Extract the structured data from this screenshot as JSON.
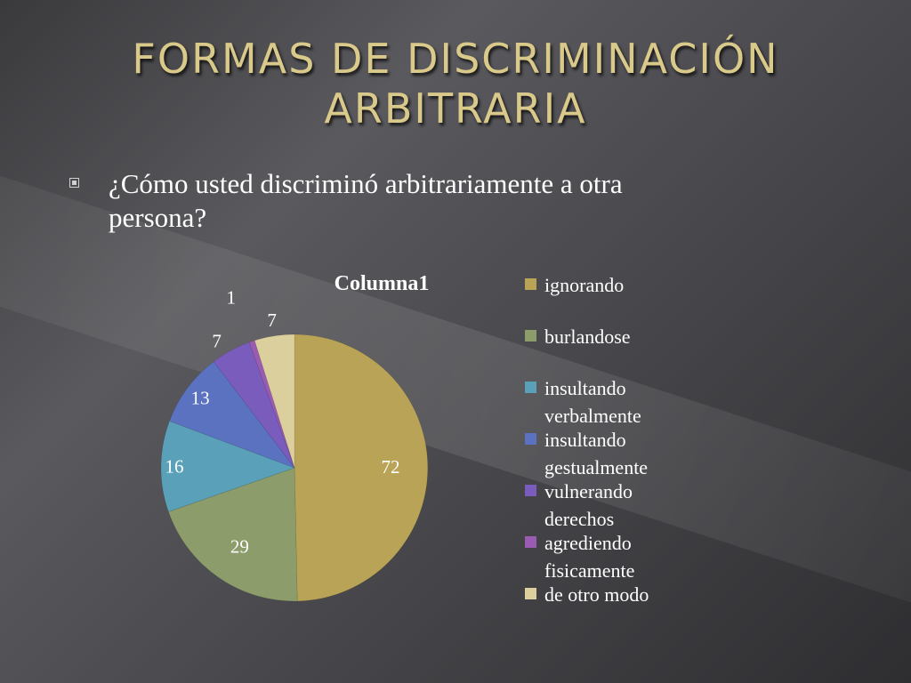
{
  "slide": {
    "title_lines": [
      "FORMAS DE DISCRIMINACIÓN",
      "ARBITRARIA"
    ],
    "bullet_lines": [
      "¿Cómo usted discriminó arbitrariamente a otra",
      "persona?"
    ]
  },
  "chart_data": {
    "type": "pie",
    "title": "Columna1",
    "legend_position": "right",
    "categories": [
      "ignorando",
      "burlandose",
      "insultando verbalmente",
      "insultando gestualmente",
      "vulnerando derechos",
      "agrediendo fisicamente",
      "de otro modo"
    ],
    "legend_lines": [
      [
        "ignorando"
      ],
      [
        "burlandose"
      ],
      [
        "insultando",
        "verbalmente"
      ],
      [
        "insultando",
        "gestualmente"
      ],
      [
        "vulnerando",
        "derechos"
      ],
      [
        "agrediendo",
        "fisicamente"
      ],
      [
        "de otro modo"
      ]
    ],
    "values": [
      72,
      29,
      16,
      13,
      7,
      1,
      7
    ],
    "colors": [
      "#b8a356",
      "#8c9c6a",
      "#5aa0b8",
      "#5a72c0",
      "#7a5cbd",
      "#9a5cb0",
      "#dccf9e"
    ]
  }
}
